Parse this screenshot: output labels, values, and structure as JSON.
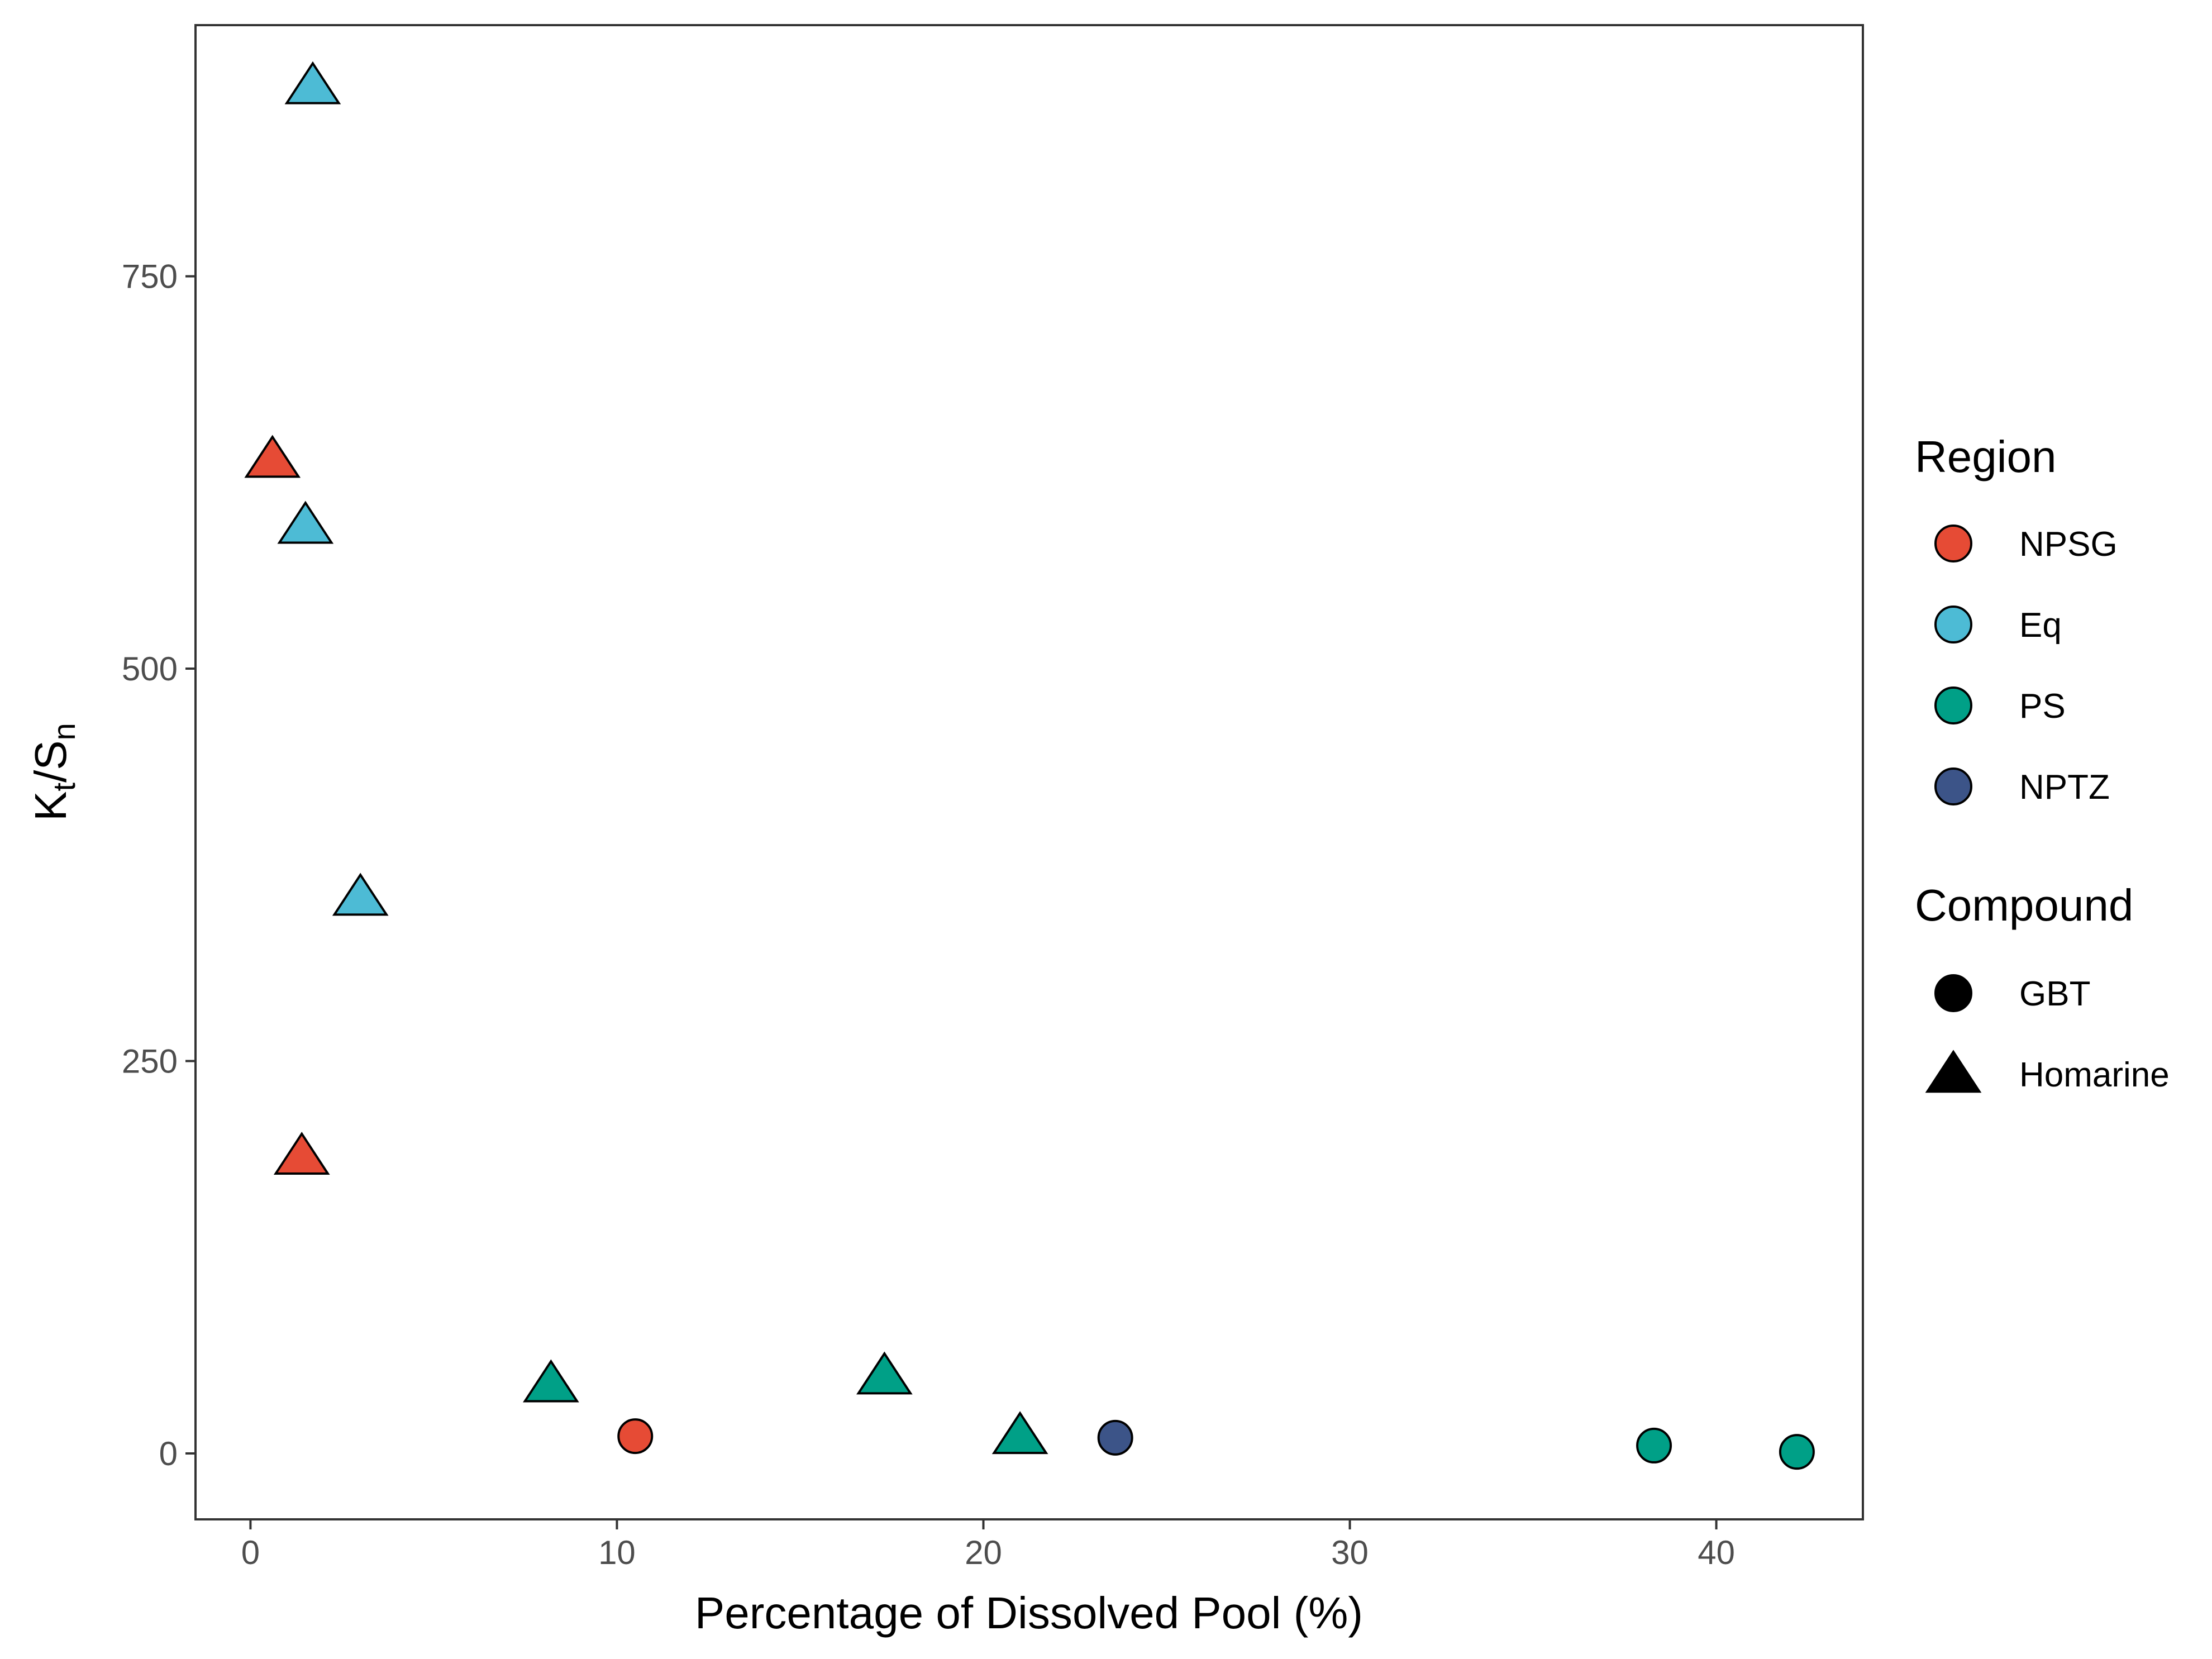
{
  "chart_data": {
    "type": "scatter",
    "xlabel": "Percentage of Dissolved Pool (%)",
    "ylabel": {
      "K": "K",
      "t": "t",
      "slash": "/",
      "S": "S",
      "n": "n"
    },
    "xlim": [
      -1.5,
      44
    ],
    "ylim": [
      -42,
      910
    ],
    "x_ticks": [
      0,
      10,
      20,
      30,
      40
    ],
    "x_tick_labels": [
      "0",
      "10",
      "20",
      "30",
      "40"
    ],
    "y_ticks": [
      0,
      250,
      500,
      750
    ],
    "y_tick_labels": [
      "0",
      "250",
      "500",
      "750"
    ],
    "grid": false,
    "legend_position": "right",
    "region_legend": {
      "title": "Region",
      "entries": [
        {
          "label": "NPSG",
          "color": "#E64B35"
        },
        {
          "label": "Eq",
          "color": "#4DBBD5"
        },
        {
          "label": "PS",
          "color": "#00A087"
        },
        {
          "label": "NPTZ",
          "color": "#3C5488"
        }
      ]
    },
    "compound_legend": {
      "title": "Compound",
      "entries": [
        {
          "label": "GBT",
          "shape": "circle"
        },
        {
          "label": "Homarine",
          "shape": "triangle"
        }
      ]
    },
    "points": [
      {
        "x": 1.7,
        "y": 870,
        "region": "Eq",
        "compound": "Homarine"
      },
      {
        "x": 0.6,
        "y": 632,
        "region": "NPSG",
        "compound": "Homarine"
      },
      {
        "x": 1.5,
        "y": 590,
        "region": "Eq",
        "compound": "Homarine"
      },
      {
        "x": 3.0,
        "y": 353,
        "region": "Eq",
        "compound": "Homarine"
      },
      {
        "x": 1.4,
        "y": 188,
        "region": "NPSG",
        "compound": "Homarine"
      },
      {
        "x": 8.2,
        "y": 43,
        "region": "PS",
        "compound": "Homarine"
      },
      {
        "x": 10.5,
        "y": 11,
        "region": "NPSG",
        "compound": "GBT"
      },
      {
        "x": 17.3,
        "y": 48,
        "region": "PS",
        "compound": "Homarine"
      },
      {
        "x": 21.0,
        "y": 10,
        "region": "PS",
        "compound": "Homarine"
      },
      {
        "x": 23.6,
        "y": 10,
        "region": "NPTZ",
        "compound": "GBT"
      },
      {
        "x": 38.3,
        "y": 5,
        "region": "PS",
        "compound": "GBT"
      },
      {
        "x": 42.2,
        "y": 1,
        "region": "PS",
        "compound": "GBT"
      }
    ]
  }
}
